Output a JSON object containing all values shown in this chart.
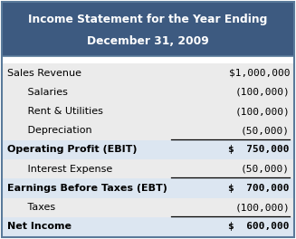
{
  "title_line1": "Income Statement for the Year Ending",
  "title_line2": "December 31, 2009",
  "title_bg": "#3d5a80",
  "title_fg": "#ffffff",
  "header_fontsize": 8.8,
  "body_fontsize": 8.0,
  "row_bg_light": "#ebebeb",
  "row_bg_bold": "#ebebeb",
  "white_bg": "#ffffff",
  "border_color": "#5a7a9a",
  "rows": [
    {
      "label": "Sales Revenue",
      "value": "$1,000,000",
      "bold": false,
      "indent": 0,
      "underline": false
    },
    {
      "label": "   Salaries",
      "value": "(100,000)",
      "bold": false,
      "indent": 1,
      "underline": false
    },
    {
      "label": "   Rent & Utilities",
      "value": "(100,000)",
      "bold": false,
      "indent": 1,
      "underline": false
    },
    {
      "label": "   Depreciation",
      "value": "(50,000)",
      "bold": false,
      "indent": 1,
      "underline": true
    },
    {
      "label": "Operating Profit (EBIT)",
      "value": "$  750,000",
      "bold": true,
      "indent": 0,
      "underline": false
    },
    {
      "label": "   Interest Expense",
      "value": "(50,000)",
      "bold": false,
      "indent": 1,
      "underline": true
    },
    {
      "label": "Earnings Before Taxes (EBT)",
      "value": "$  700,000",
      "bold": true,
      "indent": 0,
      "underline": false
    },
    {
      "label": "   Taxes",
      "value": "(100,000)",
      "bold": false,
      "indent": 1,
      "underline": true
    },
    {
      "label": "Net Income",
      "value": "$  600,000",
      "bold": true,
      "indent": 0,
      "underline": false
    }
  ]
}
